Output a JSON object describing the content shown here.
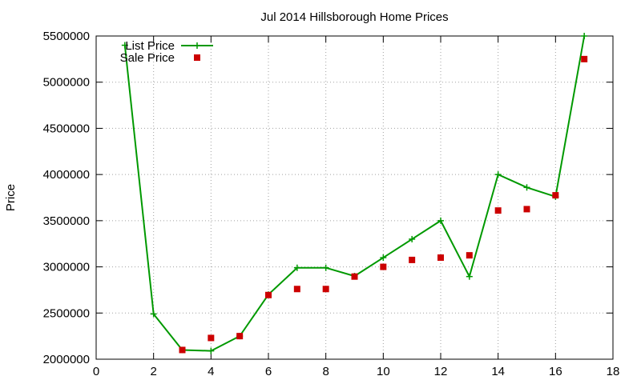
{
  "chart_data": {
    "type": "line",
    "title": "Jul 2014 Hillsborough Home Prices",
    "xlabel": "",
    "ylabel": "Price",
    "xlim": [
      0,
      18
    ],
    "ylim": [
      2000000,
      5500000
    ],
    "xticks": [
      0,
      2,
      4,
      6,
      8,
      10,
      12,
      14,
      16,
      18
    ],
    "yticks": [
      2000000,
      2500000,
      3000000,
      3500000,
      4000000,
      4500000,
      5000000,
      5500000
    ],
    "grid": true,
    "legend_position": "top-left",
    "series": [
      {
        "name": "List Price",
        "style": "line-plus",
        "color": "#009900",
        "x": [
          1,
          2,
          3,
          4,
          5,
          6,
          7,
          8,
          9,
          10,
          11,
          12,
          13,
          14,
          15,
          16,
          17
        ],
        "y": [
          5400000,
          2490000,
          2100000,
          2090000,
          2250000,
          2700000,
          2990000,
          2990000,
          2900000,
          3100000,
          3300000,
          3500000,
          2895000,
          4000000,
          3860000,
          3760000,
          5500000
        ]
      },
      {
        "name": "Sale Price",
        "style": "square",
        "color": "#cc0000",
        "x": [
          3,
          4,
          5,
          6,
          7,
          8,
          9,
          10,
          11,
          12,
          13,
          14,
          15,
          16,
          17
        ],
        "y": [
          2100000,
          2230000,
          2250000,
          2695000,
          2760000,
          2760000,
          2895000,
          3000000,
          3075000,
          3100000,
          3125000,
          3610000,
          3625000,
          3775000,
          5250000
        ]
      }
    ]
  }
}
